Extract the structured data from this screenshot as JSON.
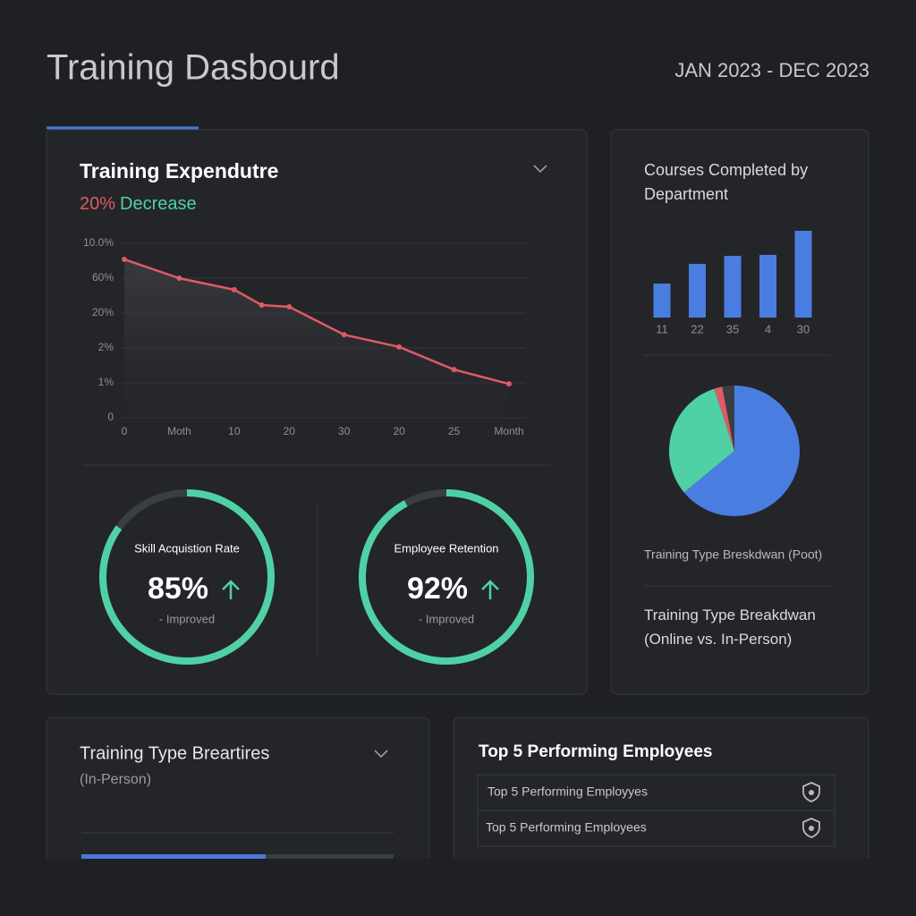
{
  "header": {
    "title": "Training Dasbourd",
    "date_range": "JAN 2023 - DEC 2023"
  },
  "expenditure": {
    "title": "Training Expendutre",
    "change": "20%",
    "change_label": "Decrease",
    "chart_data": {
      "type": "line",
      "x": [
        0,
        1,
        2,
        2.5,
        3,
        4,
        5,
        6,
        7
      ],
      "series": [
        {
          "color": "#e05a63",
          "values": [
            4.54,
            4.0,
            3.67,
            3.23,
            3.18,
            2.38,
            2.03,
            1.38,
            0.97
          ]
        }
      ],
      "xlim": [
        0,
        7
      ],
      "xticks": [
        0,
        {
          "value": 1,
          "label": "Moth"
        },
        {
          "value": 2,
          "label": "10"
        },
        {
          "value": 3,
          "label": "20"
        },
        {
          "value": 4,
          "label": "30"
        },
        {
          "value": 5,
          "label": "20"
        },
        {
          "value": 6,
          "label": "25"
        },
        {
          "value": 7,
          "label": "Month"
        }
      ],
      "ylim": [
        0,
        5
      ],
      "yticks": [
        0,
        {
          "value": 1,
          "label": "1%"
        },
        {
          "value": 2,
          "label": "2%"
        },
        {
          "value": 3,
          "label": "20%"
        },
        {
          "value": 4,
          "label": "60%"
        },
        {
          "value": 5,
          "label": "10.0%"
        }
      ],
      "grid": true
    }
  },
  "gauges": [
    {
      "label": "Skill Acquistion Rate",
      "value": 85,
      "value_label": "85%",
      "note": "- Improved",
      "color": "#4fd1a5"
    },
    {
      "label": "Employee Retention",
      "value": 92,
      "value_label": "92%",
      "note": "- Improved",
      "color": "#4fd1a5"
    }
  ],
  "departments": {
    "chart_data": {
      "type": "bar",
      "title": "Courses Completed by Department",
      "categories": [
        "11",
        "22",
        "35",
        "4",
        "30"
      ],
      "values": [
        38,
        60,
        69,
        70,
        97
      ],
      "color": "#4a7de0",
      "ylim": [
        0,
        100
      ]
    }
  },
  "training_type": {
    "chart_data": {
      "type": "pie",
      "values": [
        64,
        31,
        2,
        3
      ],
      "colors": [
        "#4a7de0",
        "#4fd1a5",
        "#e05a63",
        "#3a3d44"
      ]
    },
    "caption": "Training Type Breskdwan (Poot)",
    "subtitle": "Training Type Breakdwan (Online vs. In-Person)"
  },
  "breakdown": {
    "title": "Training Type Breartires",
    "subtitle": "(In-Person)",
    "progress": 59,
    "color": "#4a78d8"
  },
  "top_employees": {
    "title": "Top 5 Performing Employees",
    "rows": [
      "Top 5 Performing Employyes",
      "Top 5 Performing Employees"
    ]
  }
}
